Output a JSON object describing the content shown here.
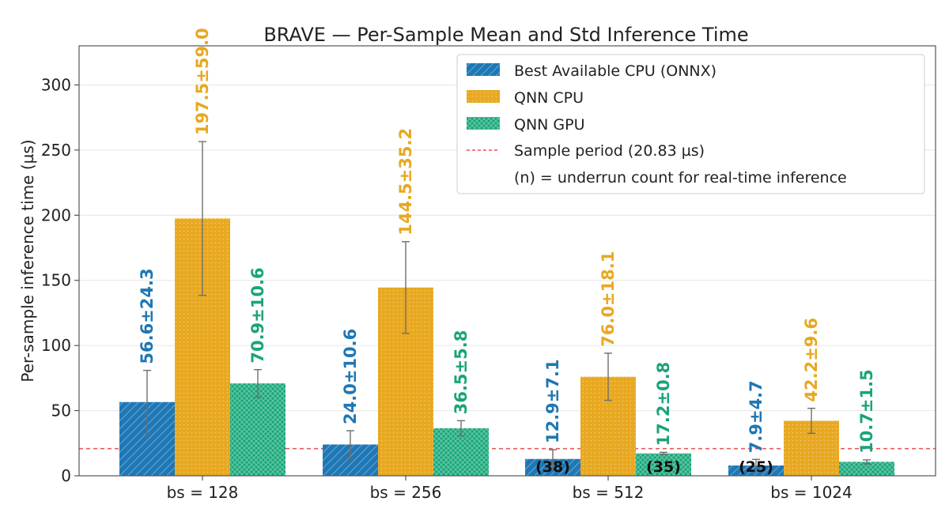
{
  "chart_data": {
    "type": "bar",
    "title": "BRAVE — Per-Sample Mean and Std Inference Time",
    "xlabel": "",
    "ylabel": "Per-sample inference time (µs)",
    "ylim": [
      0,
      330
    ],
    "yticks": [
      0,
      50,
      100,
      150,
      200,
      250,
      300
    ],
    "categories": [
      "bs = 128",
      "bs = 256",
      "bs = 512",
      "bs = 1024"
    ],
    "grid": true,
    "legend_position": "top-right",
    "series": [
      {
        "name": "Best Available CPU (ONNX)",
        "color": "#1f77b4",
        "pattern": "diagonal-hatch",
        "values": [
          56.6,
          24.0,
          12.9,
          7.9
        ],
        "std": [
          24.3,
          10.6,
          7.1,
          4.7
        ],
        "labels": [
          "56.6±24.3",
          "24.0±10.6",
          "12.9±7.1",
          "7.9±4.7"
        ],
        "underrun": [
          "",
          "",
          "(38)",
          "(25)"
        ]
      },
      {
        "name": "QNN CPU",
        "color": "#e8a820",
        "pattern": "dots",
        "values": [
          197.5,
          144.5,
          76.0,
          42.2
        ],
        "std": [
          59.0,
          35.2,
          18.1,
          9.6
        ],
        "labels": [
          "197.5±59.0",
          "144.5±35.2",
          "76.0±18.1",
          "42.2±9.6"
        ],
        "underrun": [
          "",
          "",
          "",
          ""
        ]
      },
      {
        "name": "QNN GPU",
        "color": "#1aa37a",
        "pattern": "crosshatch",
        "values": [
          70.9,
          36.5,
          17.2,
          10.7
        ],
        "std": [
          10.6,
          5.8,
          0.8,
          1.5
        ],
        "labels": [
          "70.9±10.6",
          "36.5±5.8",
          "17.2±0.8",
          "10.7±1.5"
        ],
        "underrun": [
          "",
          "",
          "(35)",
          ""
        ]
      }
    ],
    "reference_line": {
      "name": "Sample period (20.83 µs)",
      "value": 20.83,
      "color": "#e85050",
      "style": "dashed"
    },
    "legend_note": "(n) = underrun count for real-time inference"
  }
}
